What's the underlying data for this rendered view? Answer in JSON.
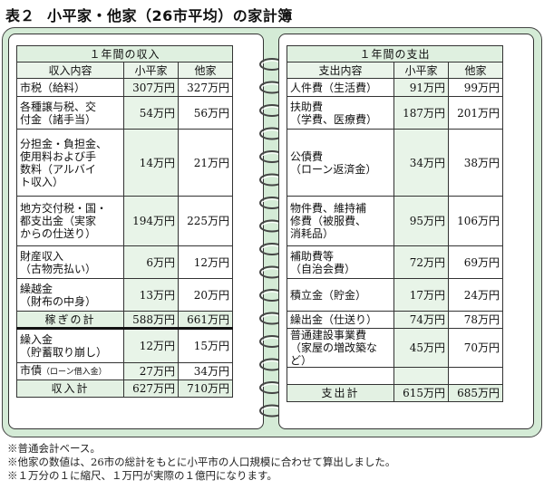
{
  "title": {
    "label": "表２",
    "text": "小平家・他家（26市平均）の家計簿"
  },
  "income": {
    "heading": "１年間の収入",
    "columns": [
      "収入内容",
      "小平家",
      "他家"
    ],
    "rows": [
      {
        "item": "市税（給料）",
        "kodaira": "307万円",
        "other": "327万円"
      },
      {
        "item": "各種譲与税、交\n付金（諸手当）",
        "kodaira": "54万円",
        "other": "56万円"
      },
      {
        "item": "分担金・負担金、\n使用料および手\n数料（アルバイ\nト収入）",
        "kodaira": "14万円",
        "other": "21万円"
      },
      {
        "item": "地方交付税・国・\n都支出金（実家\nからの仕送り）",
        "kodaira": "194万円",
        "other": "225万円"
      },
      {
        "item": "財産収入\n（古物売払い）",
        "kodaira": "6万円",
        "other": "12万円"
      },
      {
        "item": "繰越金\n（財布の中身）",
        "kodaira": "13万円",
        "other": "20万円"
      }
    ],
    "subtotal": {
      "label": "稼ぎの計",
      "kodaira": "588万円",
      "other": "661万円"
    },
    "extra_rows": [
      {
        "item": "繰入金\n（貯蓄取り崩し）",
        "kodaira": "12万円",
        "other": "15万円"
      },
      {
        "item_main": "市債",
        "item_small": "（ローン借入金）",
        "kodaira": "27万円",
        "other": "34万円"
      }
    ],
    "total": {
      "label": "収入計",
      "kodaira": "627万円",
      "other": "710万円"
    }
  },
  "expense": {
    "heading": "１年間の支出",
    "columns": [
      "支出内容",
      "小平家",
      "他家"
    ],
    "rows": [
      {
        "item": "人件費（生活費）",
        "kodaira": "91万円",
        "other": "99万円"
      },
      {
        "item": "扶助費\n（学費、医療費）",
        "kodaira": "187万円",
        "other": "201万円"
      },
      {
        "item": "公債費\n（ローン返済金）",
        "kodaira": "34万円",
        "other": "38万円"
      },
      {
        "item": "物件費、維持補\n修費（被服費、\n消耗品）",
        "kodaira": "95万円",
        "other": "106万円"
      },
      {
        "item": "補助費等\n（自治会費）",
        "kodaira": "72万円",
        "other": "69万円"
      },
      {
        "item": "積立金（貯金）",
        "kodaira": "17万円",
        "other": "24万円"
      },
      {
        "item": "繰出金（仕送り）",
        "kodaira": "74万円",
        "other": "78万円"
      },
      {
        "item": "普通建設事業費\n（家屋の増改築など）",
        "kodaira": "45万円",
        "other": "70万円"
      },
      {
        "item": "",
        "kodaira": "",
        "other": ""
      }
    ],
    "total": {
      "label": "支出計",
      "kodaira": "615万円",
      "other": "685万円"
    }
  },
  "notes": [
    "※普通会計ベース。",
    "※他家の数値は、26市の総計をもとに小平市の人口規模に合わせて算出しました。",
    "※１万分の１に縮尺、１万円が実際の１億円になります。"
  ]
}
